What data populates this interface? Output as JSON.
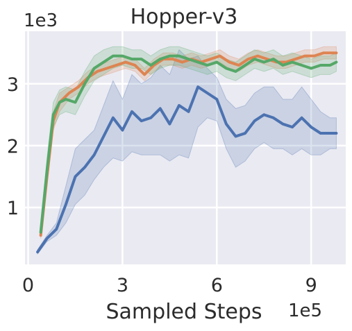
{
  "chart_data": {
    "type": "line",
    "title": "Hopper-v3",
    "xlabel": "Sampled Steps",
    "ylabel": "",
    "x_multiplier": "1e5",
    "y_multiplier": "1e3",
    "xlim": [
      -0.1,
      10.1
    ],
    "ylim": [
      0.08,
      3.85
    ],
    "x_ticks": [
      0,
      3,
      6,
      9
    ],
    "y_ticks": [
      1,
      2,
      3
    ],
    "x_tick_labels": [
      "0",
      "3",
      "6",
      "9"
    ],
    "y_tick_labels": [
      "1",
      "2",
      "3"
    ],
    "grid": true,
    "legend": "none",
    "series": [
      {
        "color": "#4c72b0",
        "x": [
          0.3,
          0.6,
          0.9,
          1.2,
          1.5,
          1.8,
          2.1,
          2.4,
          2.7,
          3.0,
          3.3,
          3.6,
          3.9,
          4.2,
          4.5,
          4.8,
          5.1,
          5.4,
          5.7,
          6.0,
          6.3,
          6.6,
          6.9,
          7.2,
          7.5,
          7.8,
          8.1,
          8.4,
          8.7,
          9.0,
          9.3,
          9.6,
          9.8
        ],
        "y": [
          0.28,
          0.5,
          0.65,
          1.05,
          1.5,
          1.65,
          1.85,
          2.15,
          2.45,
          2.25,
          2.55,
          2.4,
          2.45,
          2.6,
          2.35,
          2.65,
          2.55,
          2.95,
          2.85,
          2.75,
          2.35,
          2.15,
          2.2,
          2.4,
          2.5,
          2.45,
          2.35,
          2.3,
          2.45,
          2.3,
          2.2,
          2.2,
          2.2
        ],
        "lower": [
          0.25,
          0.45,
          0.55,
          0.75,
          1.05,
          1.2,
          1.45,
          1.65,
          1.8,
          1.75,
          1.9,
          1.85,
          1.85,
          1.85,
          1.75,
          1.85,
          1.8,
          2.3,
          2.45,
          2.4,
          1.95,
          1.65,
          1.75,
          1.95,
          2.05,
          1.95,
          1.95,
          1.85,
          1.95,
          1.85,
          1.85,
          1.95,
          1.95
        ],
        "upper": [
          0.32,
          0.55,
          0.75,
          1.35,
          1.95,
          2.1,
          2.25,
          2.65,
          3.05,
          2.75,
          3.15,
          3.0,
          3.1,
          3.3,
          3.15,
          3.55,
          3.4,
          3.45,
          3.25,
          3.1,
          2.75,
          2.6,
          2.65,
          2.85,
          2.95,
          2.95,
          2.75,
          2.75,
          2.95,
          2.75,
          2.55,
          2.45,
          2.45
        ]
      },
      {
        "color": "#dd8452",
        "x": [
          0.4,
          0.6,
          0.8,
          1.0,
          1.3,
          1.6,
          1.9,
          2.2,
          2.5,
          2.8,
          3.1,
          3.4,
          3.7,
          4.0,
          4.3,
          4.6,
          4.9,
          5.2,
          5.5,
          5.8,
          6.1,
          6.4,
          6.7,
          7.0,
          7.3,
          7.6,
          7.9,
          8.2,
          8.5,
          8.8,
          9.1,
          9.4,
          9.8
        ],
        "y": [
          0.55,
          1.5,
          2.4,
          2.7,
          2.85,
          2.95,
          3.1,
          3.2,
          3.25,
          3.3,
          3.35,
          3.3,
          3.15,
          3.3,
          3.4,
          3.4,
          3.35,
          3.4,
          3.35,
          3.4,
          3.45,
          3.35,
          3.3,
          3.4,
          3.45,
          3.4,
          3.35,
          3.35,
          3.4,
          3.45,
          3.45,
          3.5,
          3.5
        ],
        "lower": [
          0.5,
          1.35,
          2.25,
          2.55,
          2.75,
          2.85,
          3.0,
          3.1,
          3.15,
          3.2,
          3.25,
          3.2,
          3.05,
          3.2,
          3.3,
          3.3,
          3.25,
          3.3,
          3.25,
          3.3,
          3.35,
          3.25,
          3.2,
          3.3,
          3.35,
          3.3,
          3.25,
          3.25,
          3.3,
          3.35,
          3.35,
          3.4,
          3.4
        ],
        "upper": [
          0.62,
          1.65,
          2.55,
          2.85,
          2.95,
          3.05,
          3.2,
          3.3,
          3.35,
          3.4,
          3.45,
          3.4,
          3.25,
          3.4,
          3.5,
          3.5,
          3.45,
          3.5,
          3.45,
          3.5,
          3.55,
          3.45,
          3.4,
          3.5,
          3.55,
          3.5,
          3.45,
          3.45,
          3.5,
          3.55,
          3.55,
          3.6,
          3.6
        ]
      },
      {
        "color": "#55a868",
        "x": [
          0.4,
          0.6,
          0.8,
          1.0,
          1.2,
          1.5,
          1.8,
          2.1,
          2.4,
          2.7,
          3.0,
          3.3,
          3.6,
          3.9,
          4.2,
          4.5,
          4.8,
          5.1,
          5.4,
          5.7,
          6.0,
          6.3,
          6.6,
          6.9,
          7.2,
          7.5,
          7.8,
          8.1,
          8.4,
          8.7,
          9.0,
          9.3,
          9.6,
          9.8
        ],
        "y": [
          0.6,
          1.6,
          2.5,
          2.7,
          2.75,
          2.7,
          3.0,
          3.25,
          3.35,
          3.45,
          3.45,
          3.4,
          3.4,
          3.3,
          3.4,
          3.45,
          3.45,
          3.4,
          3.35,
          3.3,
          3.35,
          3.25,
          3.2,
          3.3,
          3.4,
          3.35,
          3.4,
          3.3,
          3.35,
          3.3,
          3.25,
          3.3,
          3.3,
          3.35
        ],
        "lower": [
          0.55,
          1.4,
          2.3,
          2.5,
          2.55,
          2.5,
          2.8,
          3.05,
          3.15,
          3.25,
          3.3,
          3.25,
          3.25,
          3.15,
          3.25,
          3.3,
          3.3,
          3.25,
          3.2,
          3.15,
          3.2,
          3.1,
          3.05,
          3.15,
          3.25,
          3.2,
          3.25,
          3.15,
          3.2,
          3.15,
          3.1,
          3.15,
          3.15,
          3.2
        ],
        "upper": [
          0.65,
          1.8,
          2.7,
          2.9,
          2.95,
          2.9,
          3.2,
          3.45,
          3.55,
          3.6,
          3.6,
          3.55,
          3.55,
          3.45,
          3.55,
          3.6,
          3.6,
          3.55,
          3.5,
          3.45,
          3.5,
          3.4,
          3.35,
          3.45,
          3.55,
          3.5,
          3.55,
          3.45,
          3.5,
          3.45,
          3.4,
          3.45,
          3.45,
          3.5
        ]
      }
    ]
  }
}
